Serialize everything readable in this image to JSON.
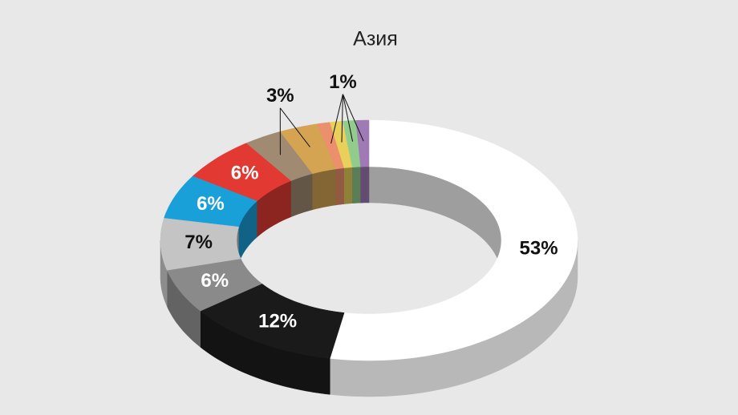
{
  "chart_data": {
    "type": "donut3d",
    "title": "Азия",
    "values": [
      53,
      12,
      6,
      7,
      6,
      6,
      3,
      3,
      1,
      1,
      1,
      1
    ],
    "value_labels": [
      "53%",
      "12%",
      "6%",
      "7%",
      "6%",
      "6%",
      "3%",
      null,
      "1%",
      null,
      null,
      null
    ],
    "colors": [
      "#ffffff",
      "#1a1a1a",
      "#8a8a8a",
      "#c4c4c4",
      "#1aa0d8",
      "#e23a33",
      "#a08a72",
      "#d4a452",
      "#ec8f6c",
      "#e8d05a",
      "#92cc8c",
      "#a07ab4"
    ]
  }
}
